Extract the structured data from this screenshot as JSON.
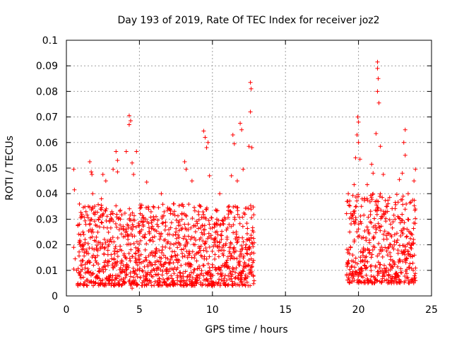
{
  "chart_data": {
    "type": "scatter",
    "title": "Day 193 of 2019, Rate Of TEC Index for receiver joz2",
    "xlabel": "GPS time / hours",
    "ylabel": "ROTI / TECUs",
    "xlim": [
      0,
      25
    ],
    "ylim": [
      0,
      0.1
    ],
    "x_ticks": [
      0,
      5,
      10,
      15,
      20,
      25
    ],
    "x_tick_labels": [
      "0",
      "5",
      "10",
      "15",
      "20",
      "25"
    ],
    "y_ticks": [
      0,
      0.01,
      0.02,
      0.03,
      0.04,
      0.05,
      0.06,
      0.07,
      0.08,
      0.09,
      0.1
    ],
    "y_tick_labels": [
      "0",
      "0.01",
      "0.02",
      "0.03",
      "0.04",
      "0.05",
      "0.06",
      "0.07",
      "0.08",
      "0.09",
      "0.1"
    ],
    "grid": true,
    "marker": "+",
    "color": "#ff0000",
    "series": [
      {
        "name": "ROTI",
        "points": [
          [
            0.5,
            0.0495
          ],
          [
            0.55,
            0.0415
          ],
          [
            0.5,
            0.019
          ],
          [
            0.6,
            0.0145
          ],
          [
            0.5,
            0.0105
          ],
          [
            0.7,
            0.01
          ],
          [
            0.9,
            0.028
          ],
          [
            1.0,
            0.012
          ],
          [
            1.0,
            0.007
          ],
          [
            1.2,
            0.02
          ],
          [
            1.3,
            0.009
          ],
          [
            1.5,
            0.035
          ],
          [
            1.6,
            0.0525
          ],
          [
            1.7,
            0.0485
          ],
          [
            1.75,
            0.0475
          ],
          [
            1.8,
            0.04
          ],
          [
            2.0,
            0.015
          ],
          [
            2.1,
            0.007
          ],
          [
            2.2,
            0.03
          ],
          [
            2.4,
            0.038
          ],
          [
            2.5,
            0.0475
          ],
          [
            2.7,
            0.045
          ],
          [
            2.9,
            0.02
          ],
          [
            3.0,
            0.008
          ],
          [
            3.2,
            0.0495
          ],
          [
            3.4,
            0.0565
          ],
          [
            3.5,
            0.053
          ],
          [
            3.5,
            0.0485
          ],
          [
            3.7,
            0.03
          ],
          [
            3.9,
            0.012
          ],
          [
            4.1,
            0.0565
          ],
          [
            4.3,
            0.0705
          ],
          [
            4.3,
            0.067
          ],
          [
            4.4,
            0.0685
          ],
          [
            4.5,
            0.052
          ],
          [
            4.6,
            0.0475
          ],
          [
            4.8,
            0.0565
          ],
          [
            4.6,
            0.005
          ],
          [
            4.5,
            0.003
          ],
          [
            5.0,
            0.025
          ],
          [
            5.2,
            0.004
          ],
          [
            5.4,
            0.018
          ],
          [
            5.5,
            0.0445
          ],
          [
            5.8,
            0.012
          ],
          [
            6.0,
            0.03
          ],
          [
            6.3,
            0.0085
          ],
          [
            6.5,
            0.04
          ],
          [
            6.8,
            0.015
          ],
          [
            7.0,
            0.007
          ],
          [
            7.3,
            0.032
          ],
          [
            7.5,
            0.025
          ],
          [
            7.8,
            0.009
          ],
          [
            8.0,
            0.035
          ],
          [
            8.1,
            0.0525
          ],
          [
            8.2,
            0.0495
          ],
          [
            8.3,
            0.015
          ],
          [
            8.6,
            0.045
          ],
          [
            8.8,
            0.02
          ],
          [
            9.0,
            0.008
          ],
          [
            9.2,
            0.035
          ],
          [
            9.4,
            0.0645
          ],
          [
            9.5,
            0.062
          ],
          [
            9.6,
            0.058
          ],
          [
            9.7,
            0.06
          ],
          [
            9.8,
            0.047
          ],
          [
            9.8,
            0.011
          ],
          [
            10.1,
            0.005
          ],
          [
            10.3,
            0.03
          ],
          [
            10.5,
            0.04
          ],
          [
            10.7,
            0.012
          ],
          [
            10.9,
            0.004
          ],
          [
            11.1,
            0.032
          ],
          [
            11.3,
            0.047
          ],
          [
            11.4,
            0.063
          ],
          [
            11.5,
            0.0595
          ],
          [
            11.7,
            0.045
          ],
          [
            11.9,
            0.0675
          ],
          [
            12.0,
            0.065
          ],
          [
            12.1,
            0.0495
          ],
          [
            12.3,
            0.02
          ],
          [
            12.5,
            0.0585
          ],
          [
            12.6,
            0.072
          ],
          [
            12.6,
            0.0835
          ],
          [
            12.65,
            0.081
          ],
          [
            12.7,
            0.058
          ],
          [
            12.8,
            0.025
          ],
          [
            12.8,
            0.008
          ],
          [
            19.3,
            0.04
          ],
          [
            19.4,
            0.025
          ],
          [
            19.5,
            0.008
          ],
          [
            19.7,
            0.0435
          ],
          [
            19.8,
            0.054
          ],
          [
            19.9,
            0.063
          ],
          [
            19.95,
            0.07
          ],
          [
            20.0,
            0.068
          ],
          [
            20.0,
            0.06
          ],
          [
            20.1,
            0.0535
          ],
          [
            20.2,
            0.035
          ],
          [
            20.4,
            0.012
          ],
          [
            20.6,
            0.0435
          ],
          [
            20.9,
            0.0515
          ],
          [
            21.0,
            0.048
          ],
          [
            21.2,
            0.0635
          ],
          [
            21.3,
            0.0915
          ],
          [
            21.3,
            0.089
          ],
          [
            21.35,
            0.085
          ],
          [
            21.3,
            0.08
          ],
          [
            21.4,
            0.0755
          ],
          [
            21.5,
            0.0585
          ],
          [
            21.7,
            0.0475
          ],
          [
            21.9,
            0.035
          ],
          [
            22.0,
            0.016
          ],
          [
            22.2,
            0.007
          ],
          [
            22.5,
            0.03
          ],
          [
            22.8,
            0.0455
          ],
          [
            23.0,
            0.048
          ],
          [
            23.1,
            0.06
          ],
          [
            23.2,
            0.065
          ],
          [
            23.2,
            0.055
          ],
          [
            23.4,
            0.04
          ],
          [
            23.6,
            0.02
          ],
          [
            23.8,
            0.045
          ],
          [
            23.9,
            0.0495
          ],
          [
            23.9,
            0.006
          ]
        ],
        "dense_bands": [
          {
            "x_start": 0.8,
            "x_end": 12.9,
            "y_min": 0.004,
            "y_max": 0.036
          },
          {
            "x_start": 19.2,
            "x_end": 23.95,
            "y_min": 0.005,
            "y_max": 0.04
          }
        ]
      }
    ]
  }
}
